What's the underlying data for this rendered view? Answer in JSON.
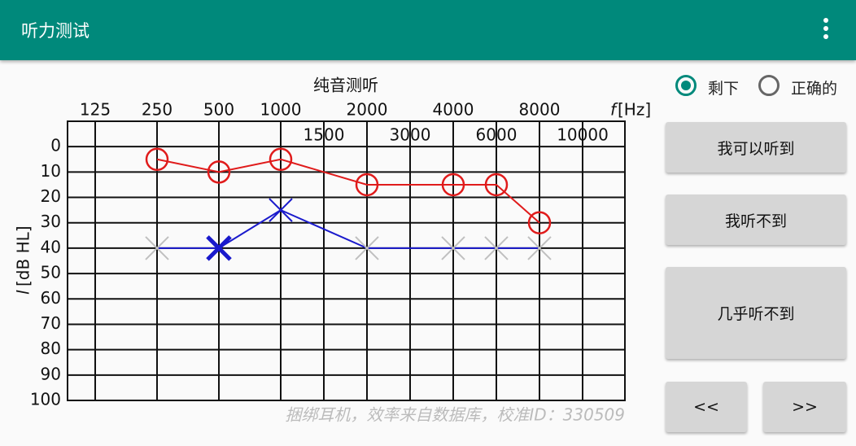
{
  "app_bar": {
    "title": "听力测试"
  },
  "options": {
    "items": [
      "剩下",
      "正确的"
    ],
    "selected_index": 0
  },
  "buttons": {
    "heard": "我可以听到",
    "not_heard": "我听不到",
    "barely": "几乎听不到",
    "prev": "<<",
    "next": ">>"
  },
  "chart_data": {
    "type": "audiogram",
    "title": "纯音测听",
    "x_label_symbol": "f",
    "x_label_unit": "[Hz]",
    "y_label_symbol": "l",
    "y_label_unit": "[dB HL]",
    "watermark": "捆绑耳机，效率来自数据库，校准ID：330509",
    "xticks": [
      125,
      250,
      500,
      1000,
      2000,
      4000,
      8000
    ],
    "xticks_secondary": [
      1500,
      3000,
      6000,
      10000
    ],
    "ylim": [
      100,
      -10
    ],
    "yticks": [
      0,
      10,
      20,
      30,
      40,
      50,
      60,
      70,
      80,
      90,
      100
    ],
    "grid": true,
    "x": [
      250,
      500,
      1000,
      2000,
      4000,
      6000,
      8000
    ],
    "series": [
      {
        "color": "#e01b1b",
        "marker": "circle",
        "values": [
          5,
          10,
          5,
          15,
          15,
          15,
          30
        ]
      },
      {
        "color": "#1a1acc",
        "marker": "x",
        "values": [
          40,
          40,
          25,
          40,
          40,
          40,
          40
        ],
        "marker_colors": [
          "#c0c0c0",
          "#1a1acc",
          "#1a1acc",
          "#c0c0c0",
          "#c0c0c0",
          "#c0c0c0",
          "#c0c0c0"
        ],
        "highlight_index": 1
      }
    ]
  }
}
